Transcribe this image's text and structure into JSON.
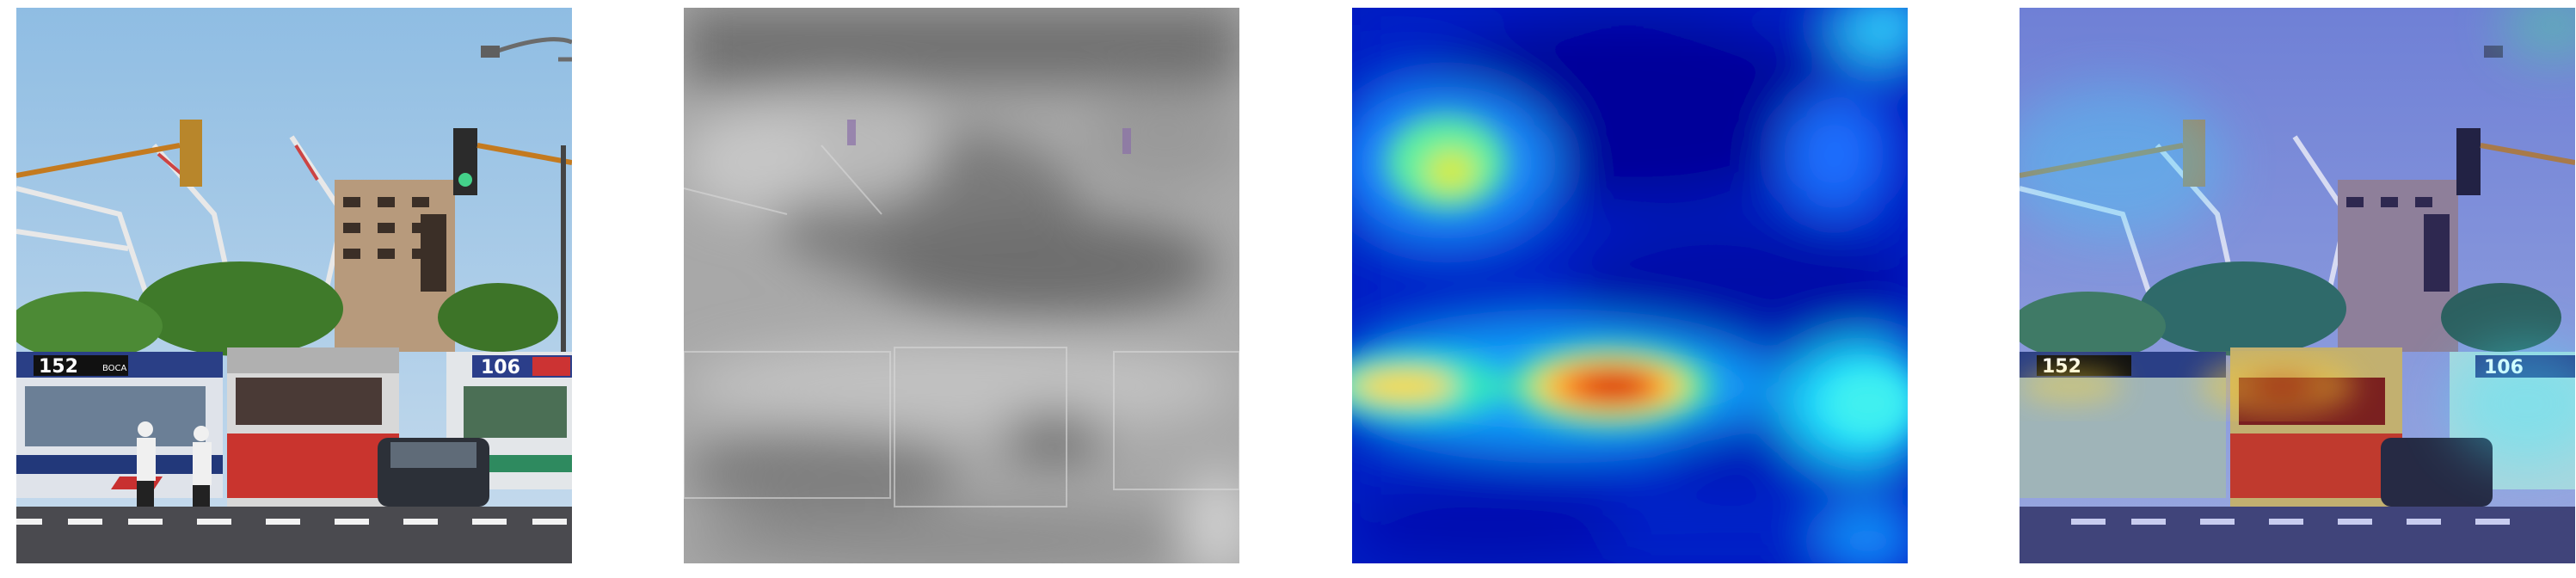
{
  "figure": {
    "panels": [
      {
        "id": "original-photo",
        "bus_numbers": [
          "152",
          "106"
        ],
        "bus_label": "BOCA"
      },
      {
        "id": "grayscale-saliency"
      },
      {
        "id": "heatmap",
        "colormap": "jet",
        "hot_color": "#cc0000",
        "cold_color": "#00008f"
      },
      {
        "id": "heatmap-overlay"
      }
    ],
    "colors": {
      "sky": "#9ec6e6",
      "bus_red": "#c9342e",
      "heat_blue": "#0010c8",
      "heat_cyan": "#20e0ff",
      "heat_yellow": "#ffe040",
      "heat_red": "#d40000"
    }
  }
}
